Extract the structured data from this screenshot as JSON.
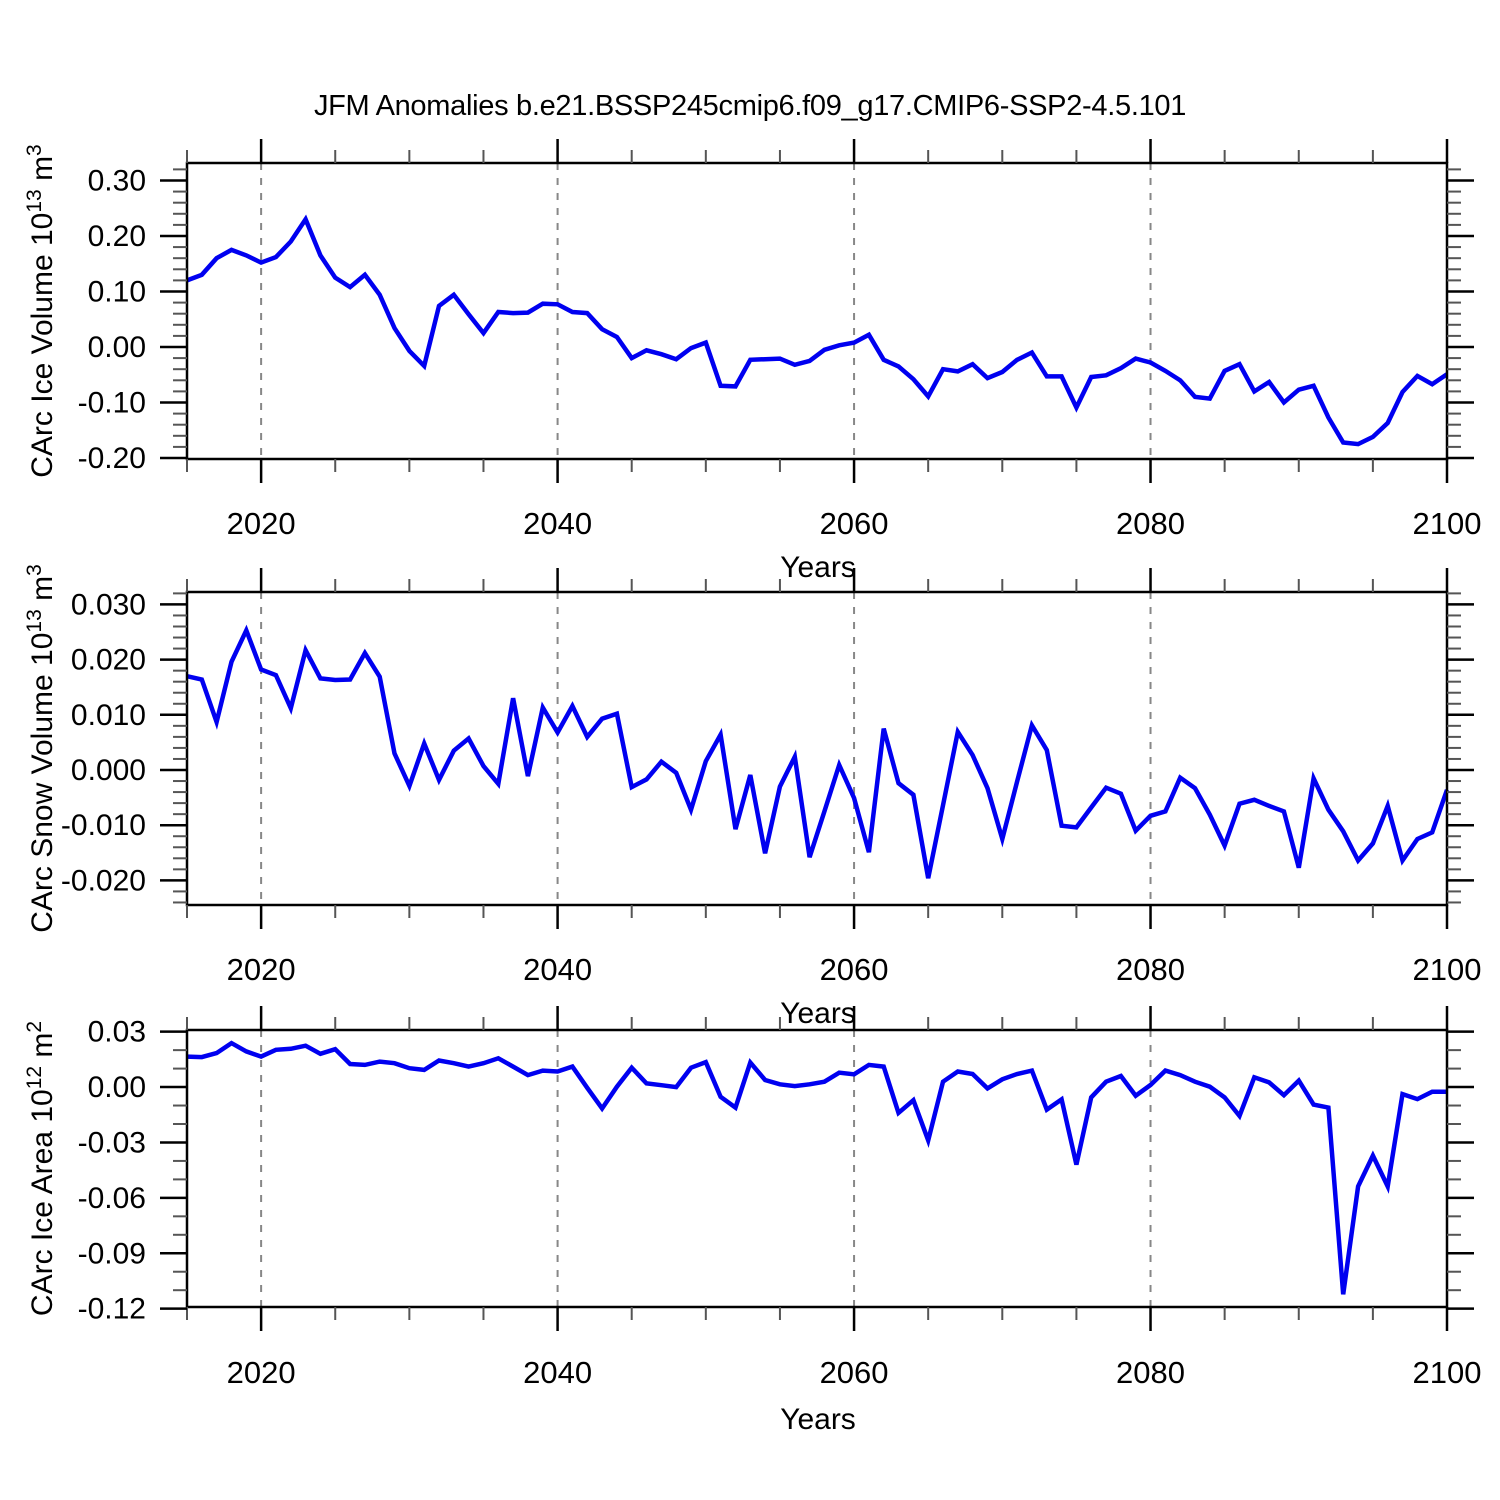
{
  "title": "JFM Anomalies b.e21.BSSP245cmip6.f09_g17.CMIP6-SSP2-4.5.101",
  "line_color": "#0000f0",
  "grid_color": "#878787",
  "frame_color": "#000000",
  "minor_tick_color": "#555555",
  "years": [
    2015,
    2016,
    2017,
    2018,
    2019,
    2020,
    2021,
    2022,
    2023,
    2024,
    2025,
    2026,
    2027,
    2028,
    2029,
    2030,
    2031,
    2032,
    2033,
    2034,
    2035,
    2036,
    2037,
    2038,
    2039,
    2040,
    2041,
    2042,
    2043,
    2044,
    2045,
    2046,
    2047,
    2048,
    2049,
    2050,
    2051,
    2052,
    2053,
    2054,
    2055,
    2056,
    2057,
    2058,
    2059,
    2060,
    2061,
    2062,
    2063,
    2064,
    2065,
    2066,
    2067,
    2068,
    2069,
    2070,
    2071,
    2072,
    2073,
    2074,
    2075,
    2076,
    2077,
    2078,
    2079,
    2080,
    2081,
    2082,
    2083,
    2084,
    2085,
    2086,
    2087,
    2088,
    2089,
    2090,
    2091,
    2092,
    2093,
    2094,
    2095,
    2096,
    2097,
    2098,
    2099,
    2100
  ],
  "xaxis": {
    "label": "Years",
    "range": [
      2015,
      2100
    ],
    "major_ticks": [
      2020,
      2040,
      2060,
      2080,
      2100
    ],
    "major_tick_labels": [
      "2020",
      "2040",
      "2060",
      "2080",
      "2100"
    ],
    "minor_step": 5,
    "gridlines": [
      2020,
      2040,
      2060,
      2080
    ]
  },
  "chart_data": [
    {
      "id": "ice-volume",
      "type": "line",
      "ylabel": "CArc Ice Volume 10^13 m^3",
      "xlabel": "Years",
      "ylim": [
        -0.2018,
        0.3315
      ],
      "yticks": [
        0.3,
        0.2,
        0.1,
        0.0,
        -0.1,
        -0.2
      ],
      "ytick_labels": [
        "0.30",
        "0.20",
        "0.10",
        "0.00",
        "-0.10",
        "-0.20"
      ],
      "y_major_step": 0.1,
      "y_minor_step": 0.02,
      "grid": "x-dashed",
      "legend": "none",
      "values": [
        0.12,
        0.13,
        0.16,
        0.175,
        0.165,
        0.152,
        0.162,
        0.19,
        0.23,
        0.165,
        0.125,
        0.108,
        0.13,
        0.094,
        0.034,
        -0.007,
        -0.034,
        0.074,
        0.094,
        0.059,
        0.025,
        0.063,
        0.061,
        0.062,
        0.078,
        0.077,
        0.063,
        0.061,
        0.032,
        0.018,
        -0.02,
        -0.006,
        -0.013,
        -0.022,
        -0.002,
        0.008,
        -0.07,
        -0.071,
        -0.023,
        -0.022,
        -0.021,
        -0.032,
        -0.025,
        -0.005,
        0.003,
        0.008,
        0.022,
        -0.023,
        -0.035,
        -0.058,
        -0.089,
        -0.04,
        -0.044,
        -0.031,
        -0.056,
        -0.045,
        -0.023,
        -0.01,
        -0.053,
        -0.053,
        -0.109,
        -0.054,
        -0.051,
        -0.038,
        -0.021,
        -0.028,
        -0.043,
        -0.06,
        -0.09,
        -0.093,
        -0.043,
        -0.031,
        -0.08,
        -0.063,
        -0.1,
        -0.077,
        -0.07,
        -0.127,
        -0.172,
        -0.175,
        -0.162,
        -0.137,
        -0.081,
        -0.052,
        -0.067,
        -0.049
      ]
    },
    {
      "id": "snow-volume",
      "type": "line",
      "ylabel": "CArc Snow Volume 10^13 m^3",
      "xlabel": "Years",
      "ylim": [
        -0.02446,
        0.03225
      ],
      "yticks": [
        0.03,
        0.02,
        0.01,
        0.0,
        -0.01,
        -0.02
      ],
      "ytick_labels": [
        "0.030",
        "0.020",
        "0.010",
        "0.000",
        "-0.010",
        "-0.020"
      ],
      "y_major_step": 0.01,
      "y_minor_step": 0.002,
      "grid": "x-dashed",
      "legend": "none",
      "values": [
        0.017,
        0.0164,
        0.0087,
        0.0196,
        0.0253,
        0.0182,
        0.0172,
        0.0112,
        0.0217,
        0.0166,
        0.0163,
        0.0164,
        0.0212,
        0.0169,
        0.003,
        -0.0029,
        0.0048,
        -0.0018,
        0.0035,
        0.0057,
        0.0007,
        -0.0025,
        0.013,
        -0.0011,
        0.0113,
        0.0068,
        0.0116,
        0.006,
        0.0093,
        0.0102,
        -0.0031,
        -0.0017,
        0.0015,
        -0.0005,
        -0.0072,
        0.0016,
        0.0064,
        -0.0107,
        -0.0009,
        -0.0151,
        -0.003,
        0.0024,
        -0.0158,
        -0.0075,
        0.0009,
        -0.0051,
        -0.0149,
        0.0075,
        -0.0024,
        -0.0045,
        -0.0196,
        -0.0064,
        0.0069,
        0.0027,
        -0.0033,
        -0.0125,
        -0.0021,
        0.0081,
        0.0036,
        -0.0101,
        -0.0104,
        -0.0068,
        -0.0032,
        -0.0043,
        -0.011,
        -0.0083,
        -0.0075,
        -0.0014,
        -0.0033,
        -0.0081,
        -0.0137,
        -0.0061,
        -0.0054,
        -0.0065,
        -0.0075,
        -0.0177,
        -0.0015,
        -0.0072,
        -0.0111,
        -0.0164,
        -0.0133,
        -0.0065,
        -0.0164,
        -0.0125,
        -0.0113,
        -0.0036
      ]
    },
    {
      "id": "ice-area",
      "type": "line",
      "ylabel": "CArc Ice Area 10^12 m^2",
      "xlabel": "Years",
      "ylim": [
        -0.1191,
        0.0309
      ],
      "yticks": [
        0.03,
        0.0,
        -0.03,
        -0.06,
        -0.09,
        -0.12
      ],
      "ytick_labels": [
        "0.03",
        "0.00",
        "-0.03",
        "-0.06",
        "-0.09",
        "-0.12"
      ],
      "y_major_step": 0.03,
      "y_minor_step": 0.01,
      "grid": "x-dashed",
      "legend": "none",
      "values": [
        0.0165,
        0.0162,
        0.0184,
        0.0238,
        0.0193,
        0.0165,
        0.0202,
        0.0207,
        0.0224,
        0.018,
        0.0205,
        0.0125,
        0.012,
        0.0138,
        0.0129,
        0.0102,
        0.0093,
        0.0144,
        0.0129,
        0.0111,
        0.0129,
        0.0156,
        0.0111,
        0.0065,
        0.0089,
        0.0084,
        0.0111,
        -0.0004,
        -0.0116,
        0.0002,
        0.0105,
        0.002,
        0.001,
        0.0,
        0.0105,
        0.0135,
        -0.0053,
        -0.0111,
        0.0133,
        0.0038,
        0.0015,
        0.0005,
        0.0015,
        0.0029,
        0.0078,
        0.0069,
        0.012,
        0.0111,
        -0.014,
        -0.0071,
        -0.0289,
        0.0029,
        0.0084,
        0.0071,
        -0.0007,
        0.0042,
        0.0071,
        0.0089,
        -0.0122,
        -0.0067,
        -0.042,
        -0.0056,
        0.0029,
        0.006,
        -0.0047,
        0.0011,
        0.0089,
        0.0065,
        0.0029,
        0.0002,
        -0.0056,
        -0.0156,
        0.0053,
        0.0025,
        -0.0044,
        0.0035,
        -0.0095,
        -0.0111,
        -0.1122,
        -0.0538,
        -0.0371,
        -0.0538,
        -0.0038,
        -0.0065,
        -0.0025,
        -0.0025
      ]
    }
  ]
}
